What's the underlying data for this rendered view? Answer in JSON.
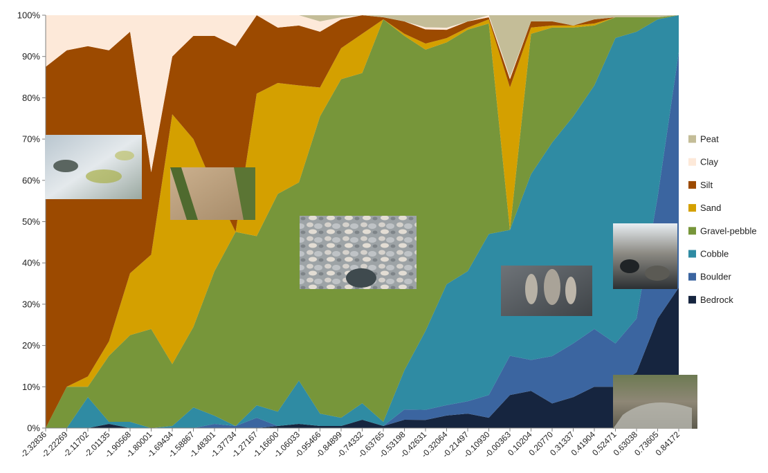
{
  "chart_data": {
    "type": "area",
    "stacked": "percent",
    "title": "",
    "xlabel": "",
    "ylabel": "",
    "ylim": [
      0,
      100
    ],
    "y_ticks": [
      "0%",
      "10%",
      "20%",
      "30%",
      "40%",
      "50%",
      "60%",
      "70%",
      "80%",
      "90%",
      "100%"
    ],
    "grid": false,
    "legend_position": "right",
    "categories": [
      "-2.32836",
      "-2.22269",
      "-2.11702",
      "-2.01135",
      "-1.90568",
      "-1.80001",
      "-1.69434",
      "-1.58867",
      "-1.48301",
      "-1.37734",
      "-1.27167",
      "-1.16600",
      "-1.06033",
      "-0.95466",
      "-0.84899",
      "-0.74332",
      "-0.63765",
      "-0.53198",
      "-0.42631",
      "-0.32064",
      "-0.21497",
      "-0.10930",
      "-0.00363",
      "0.10204",
      "0.20770",
      "0.31337",
      "0.41904",
      "0.52471",
      "0.63038",
      "0.73605",
      "0.84172"
    ],
    "series": [
      {
        "name": "Bedrock",
        "color": "#16253f",
        "values": [
          0,
          0,
          0,
          1,
          0,
          0,
          0,
          0,
          0,
          0,
          0,
          0.5,
          1,
          0.5,
          0.5,
          2,
          0.5,
          2,
          2,
          3,
          3.5,
          2.5,
          8,
          9,
          6,
          7.5,
          10,
          10,
          13.5,
          26.5,
          34
        ]
      },
      {
        "name": "Boulder",
        "color": "#3b65a0",
        "values": [
          0,
          0,
          0,
          0,
          0,
          0,
          0,
          0,
          1,
          0.5,
          2.5,
          0,
          0,
          0,
          0,
          0,
          0,
          2.5,
          2.5,
          2.5,
          3,
          5.5,
          9.5,
          7.5,
          11.5,
          13,
          14,
          10.5,
          13,
          29.5,
          57
        ]
      },
      {
        "name": "Cobble",
        "color": "#2f8ba3",
        "values": [
          0,
          0,
          7.5,
          0.5,
          1.5,
          0,
          0.5,
          5,
          2,
          0,
          3,
          3.5,
          10.5,
          3,
          2,
          4,
          1,
          9.5,
          19.5,
          29,
          31.5,
          39,
          30.5,
          45,
          52,
          55,
          59,
          74,
          69.5,
          43,
          9
        ]
      },
      {
        "name": "Gravel-pebble",
        "color": "#77963a",
        "values": [
          0,
          10,
          2.5,
          16,
          21,
          24,
          15,
          19.5,
          35,
          47,
          41,
          53,
          48,
          72,
          82,
          80,
          97.5,
          81,
          69.5,
          58,
          58.5,
          51,
          0,
          34,
          28,
          21.5,
          14.5,
          5,
          3.5,
          0.5,
          0
        ]
      },
      {
        "name": "Sand",
        "color": "#d4a000",
        "values": [
          0,
          0,
          2.5,
          3.5,
          15,
          18,
          60.5,
          45.5,
          20,
          0,
          34.5,
          27,
          23.5,
          7,
          7.5,
          9.5,
          0,
          0.5,
          1.5,
          1,
          0.5,
          1,
          34.5,
          1.5,
          0.5,
          0.5,
          0.5,
          0,
          0,
          0,
          0
        ]
      },
      {
        "name": "Silt",
        "color": "#9c4a00",
        "values": [
          87.5,
          81.5,
          80,
          70.5,
          58.5,
          20,
          14,
          25,
          37,
          45,
          19,
          13.5,
          14.5,
          13.5,
          7,
          4.5,
          0.5,
          3,
          3.5,
          2,
          1.5,
          0.5,
          2,
          1.5,
          1,
          0,
          1,
          0,
          0,
          0,
          0
        ]
      },
      {
        "name": "Clay",
        "color": "#fde9d9",
        "values": [
          12.5,
          8.5,
          7.5,
          8.5,
          4,
          38,
          10,
          5,
          5,
          7.5,
          0,
          3,
          2.5,
          2.5,
          0.5,
          0,
          0,
          0,
          0.5,
          0.5,
          0,
          0.5,
          0.5,
          0,
          0,
          0,
          0,
          0,
          0,
          0,
          0
        ]
      },
      {
        "name": "Peat",
        "color": "#c4bd98",
        "values": [
          0,
          0,
          0,
          0,
          0,
          0,
          0,
          0,
          0,
          0,
          0,
          0,
          0,
          1.5,
          0.5,
          0,
          0.5,
          1.5,
          3,
          3,
          1.5,
          0,
          15,
          1.5,
          1.5,
          2.5,
          1,
          0.5,
          0.5,
          0.5,
          0
        ]
      }
    ],
    "photos": [
      "shallow-water-algae-photo",
      "sandy-streambed-photo",
      "gravel-pebble-photo",
      "cobble-rocks-photo",
      "boulder-stream-photo",
      "bedrock-stream-photo"
    ]
  }
}
